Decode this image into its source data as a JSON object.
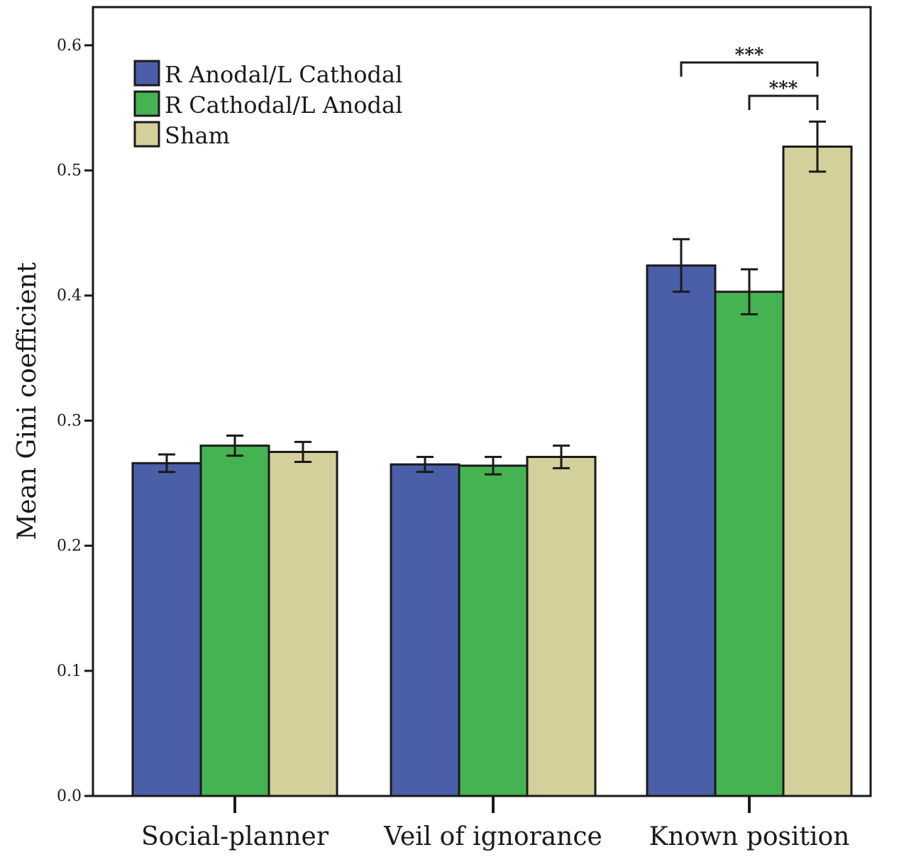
{
  "chart_data": {
    "type": "bar",
    "title": "",
    "xlabel": "",
    "ylabel": "Mean Gini coefficient",
    "ylim": [
      0.0,
      0.63
    ],
    "yticks": [
      "0.0",
      "0.1",
      "0.2",
      "0.3",
      "0.4",
      "0.5",
      "0.6"
    ],
    "categories": [
      "Social-planner",
      "Veil of ignorance",
      "Known position"
    ],
    "series": [
      {
        "name": "R Anodal/L Cathodal",
        "color": "#4a5fa8",
        "values": [
          0.266,
          0.265,
          0.424
        ],
        "errors": [
          0.007,
          0.006,
          0.021
        ]
      },
      {
        "name": "R Cathodal/L Anodal",
        "color": "#45b351",
        "values": [
          0.28,
          0.264,
          0.403
        ],
        "errors": [
          0.008,
          0.007,
          0.018
        ]
      },
      {
        "name": "Sham",
        "color": "#d4d09b",
        "values": [
          0.275,
          0.271,
          0.519
        ],
        "errors": [
          0.008,
          0.009,
          0.02
        ]
      }
    ],
    "legend_position": "top-left",
    "significance": [
      {
        "category": "Known position",
        "from_series": 0,
        "to_series": 2,
        "label": "***"
      },
      {
        "category": "Known position",
        "from_series": 1,
        "to_series": 2,
        "label": "***"
      }
    ]
  }
}
